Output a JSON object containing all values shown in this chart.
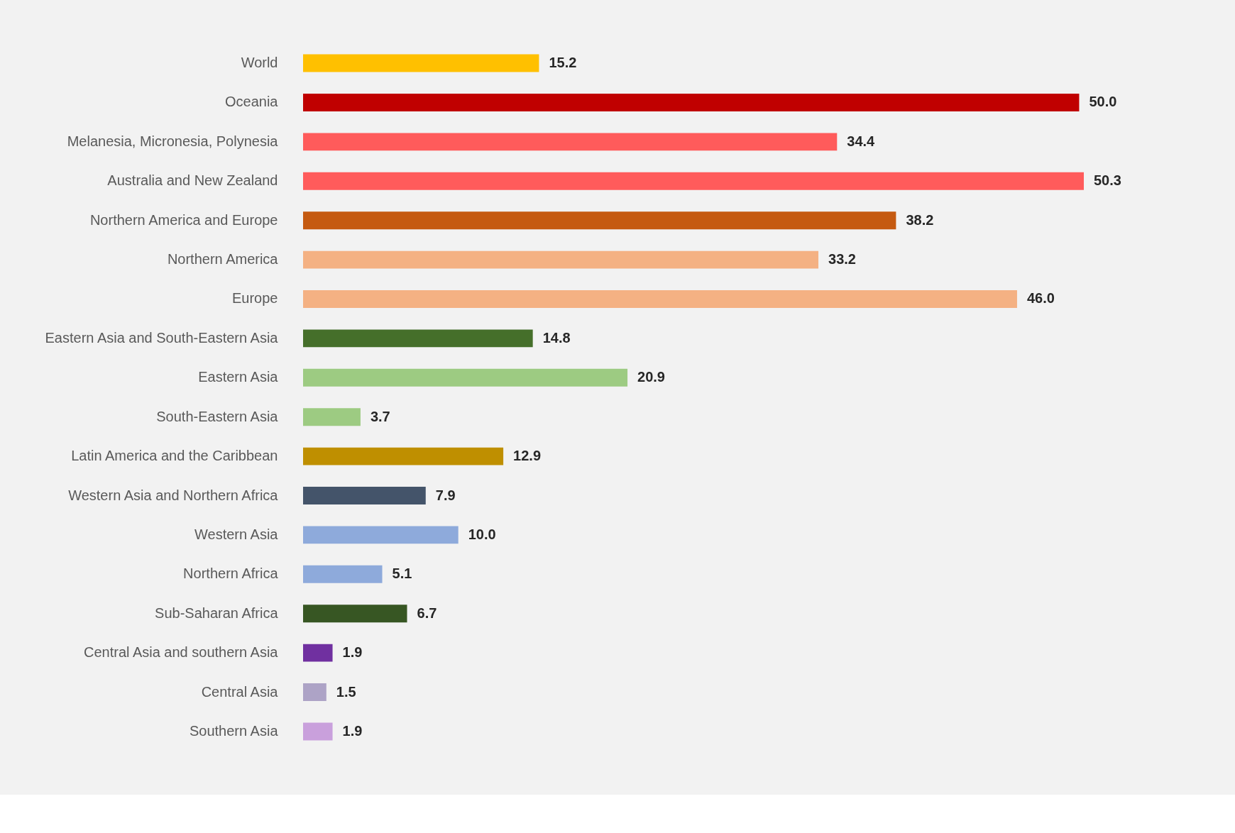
{
  "chart_data": {
    "type": "bar",
    "orientation": "horizontal",
    "value_labels": [
      "15.2",
      "50.0",
      "34.4",
      "50.3",
      "38.2",
      "33.2",
      "46.0",
      "14.8",
      "20.9",
      "3.7",
      "12.9",
      "7.9",
      "10.0",
      "5.1",
      "6.7",
      "1.9",
      "1.5",
      "1.9"
    ],
    "categories": [
      "World",
      "Oceania",
      "Melanesia, Micronesia, Polynesia",
      "Australia and New Zealand",
      "Northern America and Europe",
      "Northern America",
      "Europe",
      "Eastern Asia and South-Eastern Asia",
      "Eastern Asia",
      "South-Eastern Asia",
      "Latin America and the Caribbean",
      "Western Asia and Northern Africa",
      "Western Asia",
      "Northern Africa",
      "Sub-Saharan Africa",
      "Central Asia and southern Asia",
      "Central Asia",
      "Southern Asia"
    ],
    "values": [
      15.2,
      50.0,
      34.4,
      50.3,
      38.2,
      33.2,
      46.0,
      14.8,
      20.9,
      3.7,
      12.9,
      7.9,
      10.0,
      5.1,
      6.7,
      1.9,
      1.5,
      1.9
    ],
    "colors": [
      "#ffc000",
      "#c00000",
      "#ff5b5b",
      "#ff5b5b",
      "#c55a11",
      "#f4b183",
      "#f4b183",
      "#456f2a",
      "#9dcb82",
      "#9dcb82",
      "#bf8f00",
      "#44546a",
      "#8eaadb",
      "#8eaadb",
      "#375623",
      "#7030a0",
      "#ada3c6",
      "#c9a0dc"
    ],
    "grid": false,
    "legend": false
  }
}
